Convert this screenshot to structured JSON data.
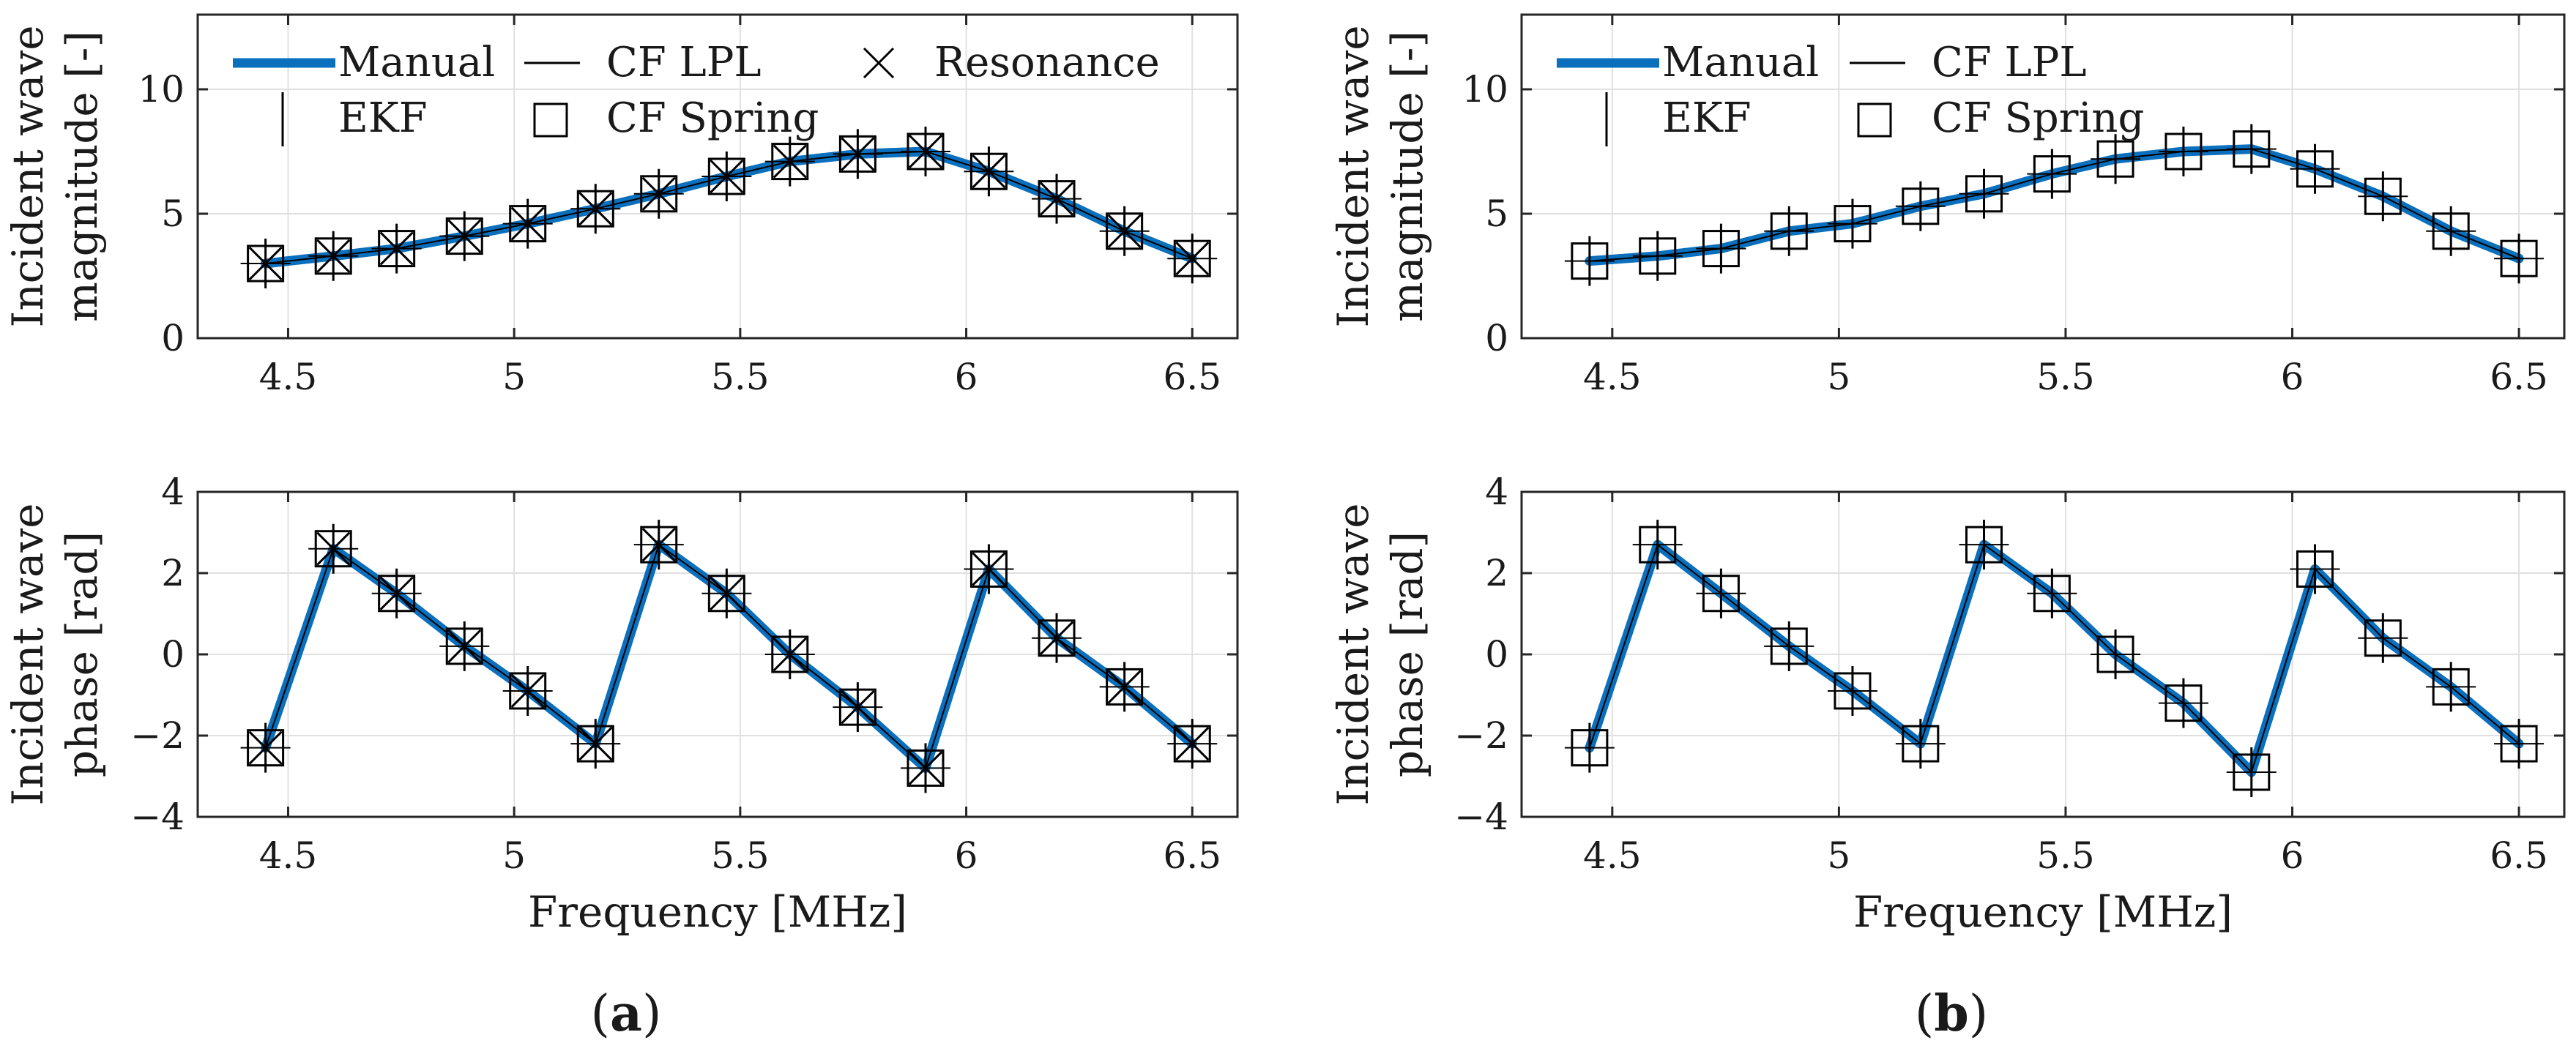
{
  "colors": {
    "manual": "#0a6fbd",
    "marker": "#000000",
    "grid": "#e0e0e0",
    "axis": "#262626"
  },
  "legend": {
    "manual": "Manual",
    "cf_lpl": "CF LPL",
    "resonance": "Resonance",
    "ekf": "EKF",
    "cf_spring": "CF Spring"
  },
  "panels": [
    {
      "label": "a",
      "paren_open": "(",
      "paren_close": ")"
    },
    {
      "label": "b",
      "paren_open": "(",
      "paren_close": ")"
    }
  ],
  "chart_data": [
    {
      "id": "a-magnitude",
      "panel": "a",
      "type": "line",
      "ylabel_line1": "Incident wave",
      "ylabel_line2": "magnitude [-]",
      "xlabel": "",
      "xlim": [
        4.3,
        6.6
      ],
      "ylim": [
        0,
        13
      ],
      "xticks": [
        4.5,
        5,
        5.5,
        6,
        6.5
      ],
      "xtick_labels": [
        "4.5",
        "5",
        "5.5",
        "6",
        "6.5"
      ],
      "yticks": [
        0,
        5,
        10
      ],
      "ytick_labels": [
        "0",
        "5",
        "10"
      ],
      "show_resonance": true,
      "x": [
        4.45,
        4.6,
        4.74,
        4.89,
        5.03,
        5.18,
        5.32,
        5.47,
        5.61,
        5.76,
        5.91,
        6.05,
        6.2,
        6.35,
        6.5
      ],
      "series": [
        {
          "name": "Manual",
          "values": [
            3.0,
            3.3,
            3.6,
            4.1,
            4.6,
            5.2,
            5.8,
            6.5,
            7.1,
            7.4,
            7.5,
            6.7,
            5.6,
            4.3,
            3.2
          ]
        },
        {
          "name": "CF LPL",
          "values": [
            3.0,
            3.3,
            3.6,
            4.1,
            4.6,
            5.2,
            5.8,
            6.5,
            7.1,
            7.4,
            7.5,
            6.7,
            5.6,
            4.3,
            3.2
          ]
        },
        {
          "name": "EKF",
          "values": [
            3.0,
            3.3,
            3.6,
            4.1,
            4.6,
            5.2,
            5.8,
            6.5,
            7.1,
            7.4,
            7.5,
            6.7,
            5.6,
            4.3,
            3.2
          ]
        },
        {
          "name": "CF Spring",
          "values": [
            3.0,
            3.3,
            3.6,
            4.1,
            4.6,
            5.2,
            5.8,
            6.5,
            7.1,
            7.4,
            7.5,
            6.7,
            5.6,
            4.3,
            3.2
          ]
        },
        {
          "name": "Resonance",
          "values": [
            3.0,
            3.3,
            3.6,
            4.1,
            4.6,
            5.2,
            5.8,
            6.5,
            7.1,
            7.4,
            7.5,
            6.7,
            5.6,
            4.3,
            3.2
          ]
        }
      ]
    },
    {
      "id": "a-phase",
      "panel": "a",
      "type": "line",
      "ylabel_line1": "Incident wave",
      "ylabel_line2": "phase [rad]",
      "xlabel": "Frequency [MHz]",
      "xlim": [
        4.3,
        6.6
      ],
      "ylim": [
        -4,
        4
      ],
      "xticks": [
        4.5,
        5,
        5.5,
        6,
        6.5
      ],
      "xtick_labels": [
        "4.5",
        "5",
        "5.5",
        "6",
        "6.5"
      ],
      "yticks": [
        -4,
        -2,
        0,
        2,
        4
      ],
      "ytick_labels": [
        "−4",
        "−2",
        "0",
        "2",
        "4"
      ],
      "show_resonance": true,
      "x": [
        4.45,
        4.6,
        4.74,
        4.89,
        5.03,
        5.18,
        5.32,
        5.47,
        5.61,
        5.76,
        5.91,
        6.05,
        6.2,
        6.35,
        6.5
      ],
      "series": [
        {
          "name": "Manual",
          "values": [
            -2.3,
            2.6,
            1.5,
            0.2,
            -0.9,
            -2.2,
            2.7,
            1.5,
            0.0,
            -1.3,
            -2.8,
            2.1,
            0.4,
            -0.8,
            -2.2
          ]
        },
        {
          "name": "CF LPL",
          "values": [
            -2.3,
            2.6,
            1.5,
            0.2,
            -0.9,
            -2.2,
            2.7,
            1.5,
            0.0,
            -1.3,
            -2.8,
            2.1,
            0.4,
            -0.8,
            -2.2
          ]
        },
        {
          "name": "EKF",
          "values": [
            -2.3,
            2.6,
            1.5,
            0.2,
            -0.9,
            -2.2,
            2.7,
            1.5,
            0.0,
            -1.3,
            -2.8,
            2.1,
            0.4,
            -0.8,
            -2.2
          ]
        },
        {
          "name": "CF Spring",
          "values": [
            -2.3,
            2.6,
            1.5,
            0.2,
            -0.9,
            -2.2,
            2.7,
            1.5,
            0.0,
            -1.3,
            -2.8,
            2.1,
            0.4,
            -0.8,
            -2.2
          ]
        },
        {
          "name": "Resonance",
          "values": [
            -2.3,
            2.6,
            1.5,
            0.2,
            -0.9,
            -2.2,
            2.7,
            1.5,
            0.0,
            -1.3,
            -2.8,
            2.1,
            0.4,
            -0.8,
            -2.2
          ]
        }
      ]
    },
    {
      "id": "b-magnitude",
      "panel": "b",
      "type": "line",
      "ylabel_line1": "Incident wave",
      "ylabel_line2": "magnitude [-]",
      "xlabel": "",
      "xlim": [
        4.3,
        6.6
      ],
      "ylim": [
        0,
        13
      ],
      "xticks": [
        4.5,
        5,
        5.5,
        6,
        6.5
      ],
      "xtick_labels": [
        "4.5",
        "5",
        "5.5",
        "6",
        "6.5"
      ],
      "yticks": [
        0,
        5,
        10
      ],
      "ytick_labels": [
        "0",
        "5",
        "10"
      ],
      "show_resonance": false,
      "x": [
        4.45,
        4.6,
        4.74,
        4.89,
        5.03,
        5.18,
        5.32,
        5.47,
        5.61,
        5.76,
        5.91,
        6.05,
        6.2,
        6.35,
        6.5
      ],
      "series": [
        {
          "name": "Manual",
          "values": [
            3.1,
            3.3,
            3.6,
            4.3,
            4.6,
            5.3,
            5.8,
            6.6,
            7.2,
            7.5,
            7.6,
            6.8,
            5.7,
            4.3,
            3.2
          ]
        },
        {
          "name": "CF LPL",
          "values": [
            3.1,
            3.3,
            3.6,
            4.3,
            4.6,
            5.3,
            5.8,
            6.6,
            7.2,
            7.5,
            7.6,
            6.8,
            5.7,
            4.3,
            3.2
          ]
        },
        {
          "name": "EKF",
          "values": [
            3.1,
            3.3,
            3.6,
            4.3,
            4.6,
            5.3,
            5.8,
            6.6,
            7.2,
            7.5,
            7.6,
            6.8,
            5.7,
            4.3,
            3.2
          ]
        },
        {
          "name": "CF Spring",
          "values": [
            3.1,
            3.3,
            3.6,
            4.3,
            4.6,
            5.3,
            5.8,
            6.6,
            7.2,
            7.5,
            7.6,
            6.8,
            5.7,
            4.3,
            3.2
          ]
        }
      ]
    },
    {
      "id": "b-phase",
      "panel": "b",
      "type": "line",
      "ylabel_line1": "Incident wave",
      "ylabel_line2": "phase [rad]",
      "xlabel": "Frequency [MHz]",
      "xlim": [
        4.3,
        6.6
      ],
      "ylim": [
        -4,
        4
      ],
      "xticks": [
        4.5,
        5,
        5.5,
        6,
        6.5
      ],
      "xtick_labels": [
        "4.5",
        "5",
        "5.5",
        "6",
        "6.5"
      ],
      "yticks": [
        -4,
        -2,
        0,
        2,
        4
      ],
      "ytick_labels": [
        "−4",
        "−2",
        "0",
        "2",
        "4"
      ],
      "show_resonance": false,
      "x": [
        4.45,
        4.6,
        4.74,
        4.89,
        5.03,
        5.18,
        5.32,
        5.47,
        5.61,
        5.76,
        5.91,
        6.05,
        6.2,
        6.35,
        6.5
      ],
      "series": [
        {
          "name": "Manual",
          "values": [
            -2.3,
            2.7,
            1.5,
            0.2,
            -0.9,
            -2.2,
            2.7,
            1.5,
            0.0,
            -1.2,
            -2.9,
            2.1,
            0.4,
            -0.8,
            -2.2
          ]
        },
        {
          "name": "CF LPL",
          "values": [
            -2.3,
            2.7,
            1.5,
            0.2,
            -0.9,
            -2.2,
            2.7,
            1.5,
            0.0,
            -1.2,
            -2.9,
            2.1,
            0.4,
            -0.8,
            -2.2
          ]
        },
        {
          "name": "EKF",
          "values": [
            -2.3,
            2.7,
            1.5,
            0.2,
            -0.9,
            -2.2,
            2.7,
            1.5,
            0.0,
            -1.2,
            -2.9,
            2.1,
            0.4,
            -0.8,
            -2.2
          ]
        },
        {
          "name": "CF Spring",
          "values": [
            -2.3,
            2.7,
            1.5,
            0.2,
            -0.9,
            -2.2,
            2.7,
            1.5,
            0.0,
            -1.2,
            -2.9,
            2.1,
            0.4,
            -0.8,
            -2.2
          ]
        }
      ]
    }
  ]
}
